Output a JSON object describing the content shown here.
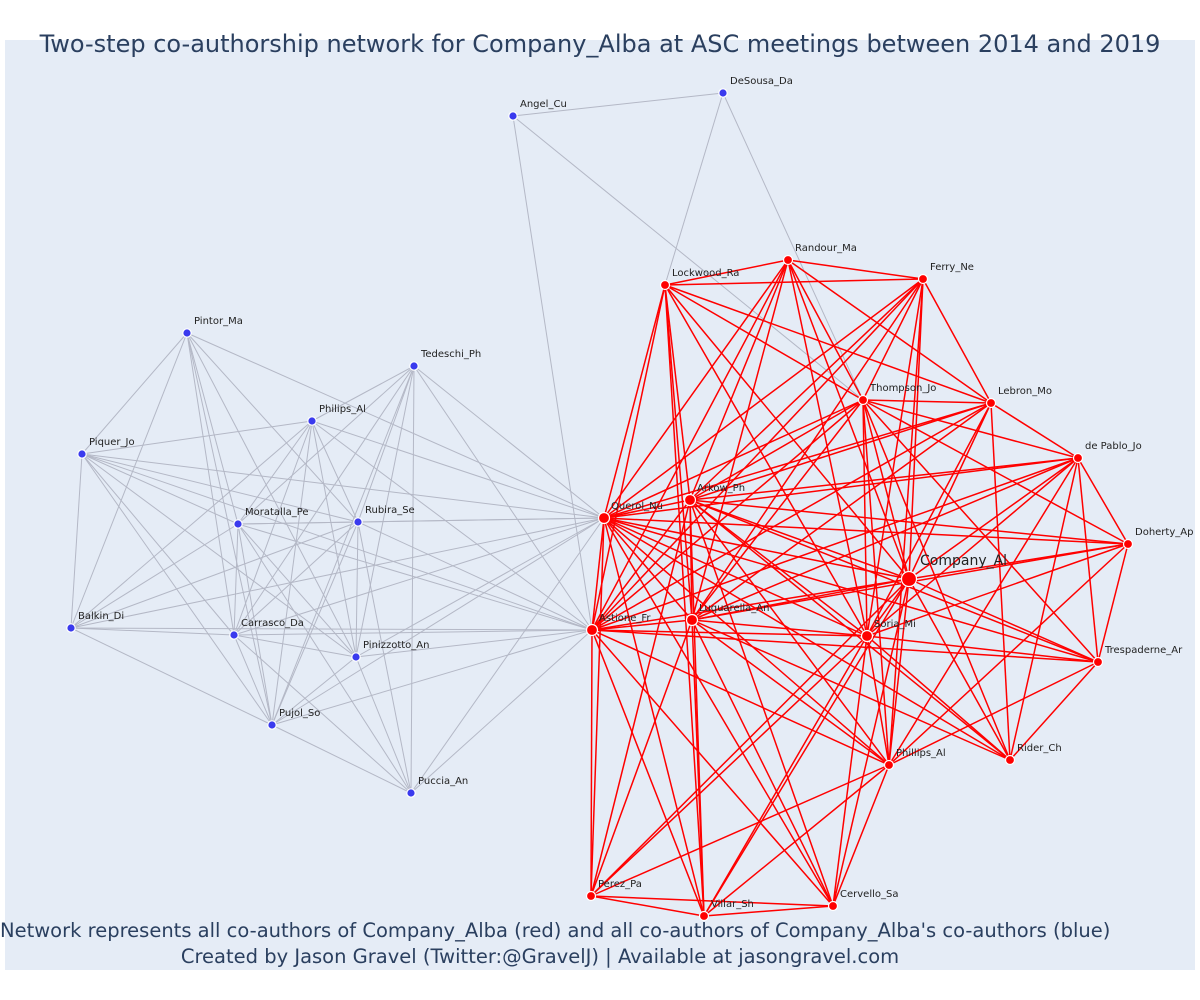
{
  "title": "Two-step co-authorship network for Company_Alba at ASC meetings between 2014 and 2019",
  "caption": {
    "line1": "Network represents all co-authors of Company_Alba (red) and all co-authors of Company_Alba's co-authors (blue)",
    "line2": "Created by Jason Gravel (Twitter:@GravelJ) | Available at jasongravel.com"
  },
  "colors": {
    "red": "#ff0000",
    "blue": "#3a3aee",
    "edge_gray": "#b4b8c6",
    "background": "#e5ecf6",
    "text": "#2a3f5f"
  },
  "nodes": [
    {
      "id": "company",
      "label": "Company_Al",
      "group": "center"
    },
    {
      "id": "querol",
      "label": "Querol_Nu",
      "group": "red"
    },
    {
      "id": "arkow",
      "label": "Arkow_Ph",
      "group": "red"
    },
    {
      "id": "astione",
      "label": "Astione_Fr",
      "group": "red"
    },
    {
      "id": "luquarella",
      "label": "Luquarella_An",
      "group": "red"
    },
    {
      "id": "soria",
      "label": "Soria_Mi",
      "group": "red"
    },
    {
      "id": "thompson",
      "label": "Thompson_Jo",
      "group": "red"
    },
    {
      "id": "lockwood",
      "label": "Lockwood_Ra",
      "group": "red"
    },
    {
      "id": "randour",
      "label": "Randour_Ma",
      "group": "red"
    },
    {
      "id": "ferry",
      "label": "Ferry_Ne",
      "group": "red"
    },
    {
      "id": "lebron",
      "label": "Lebron_Mo",
      "group": "red"
    },
    {
      "id": "depablo",
      "label": "de Pablo_Jo",
      "group": "red"
    },
    {
      "id": "doherty",
      "label": "Doherty_Ap",
      "group": "red"
    },
    {
      "id": "trespaderne",
      "label": "Trespaderne_Ar",
      "group": "red"
    },
    {
      "id": "rider",
      "label": "Rider_Ch",
      "group": "red"
    },
    {
      "id": "phillipsr",
      "label": "Phillips_Al",
      "group": "red"
    },
    {
      "id": "cervello",
      "label": "Cervello_Sa",
      "group": "red"
    },
    {
      "id": "villar",
      "label": "Villar_Sh",
      "group": "red"
    },
    {
      "id": "perez",
      "label": "Perez_Pa",
      "group": "red"
    },
    {
      "id": "angel",
      "label": "Angel_Cu",
      "group": "blue"
    },
    {
      "id": "desousa",
      "label": "DeSousa_Da",
      "group": "blue"
    },
    {
      "id": "pintor",
      "label": "Pintor_Ma",
      "group": "blue"
    },
    {
      "id": "tedeschi",
      "label": "Tedeschi_Ph",
      "group": "blue"
    },
    {
      "id": "philipsb",
      "label": "Philips_Al",
      "group": "blue"
    },
    {
      "id": "piquer",
      "label": "Piquer_Jo",
      "group": "blue"
    },
    {
      "id": "moratalla",
      "label": "Moratalla_Pe",
      "group": "blue"
    },
    {
      "id": "rubira",
      "label": "Rubira_Se",
      "group": "blue"
    },
    {
      "id": "balkin",
      "label": "Balkin_Di",
      "group": "blue"
    },
    {
      "id": "carrasco",
      "label": "Carrasco_Da",
      "group": "blue"
    },
    {
      "id": "pinizzotto",
      "label": "Pinizzotto_An",
      "group": "blue"
    },
    {
      "id": "pujol",
      "label": "Pujol_So",
      "group": "blue"
    },
    {
      "id": "puccia",
      "label": "Puccia_An",
      "group": "blue"
    }
  ],
  "red_edges": [
    [
      "company",
      "querol"
    ],
    [
      "company",
      "arkow"
    ],
    [
      "company",
      "astione"
    ],
    [
      "company",
      "luquarella"
    ],
    [
      "company",
      "soria"
    ],
    [
      "company",
      "thompson"
    ],
    [
      "company",
      "lockwood"
    ],
    [
      "company",
      "randour"
    ],
    [
      "company",
      "ferry"
    ],
    [
      "company",
      "lebron"
    ],
    [
      "company",
      "depablo"
    ],
    [
      "company",
      "doherty"
    ],
    [
      "company",
      "trespaderne"
    ],
    [
      "company",
      "rider"
    ],
    [
      "company",
      "phillipsr"
    ],
    [
      "company",
      "cervello"
    ],
    [
      "company",
      "villar"
    ],
    [
      "company",
      "perez"
    ],
    [
      "querol",
      "arkow"
    ],
    [
      "querol",
      "astione"
    ],
    [
      "querol",
      "luquarella"
    ],
    [
      "querol",
      "soria"
    ],
    [
      "querol",
      "thompson"
    ],
    [
      "querol",
      "lockwood"
    ],
    [
      "querol",
      "randour"
    ],
    [
      "querol",
      "ferry"
    ],
    [
      "querol",
      "lebron"
    ],
    [
      "querol",
      "depablo"
    ],
    [
      "querol",
      "doherty"
    ],
    [
      "querol",
      "trespaderne"
    ],
    [
      "querol",
      "rider"
    ],
    [
      "querol",
      "phillipsr"
    ],
    [
      "querol",
      "cervello"
    ],
    [
      "querol",
      "villar"
    ],
    [
      "querol",
      "perez"
    ],
    [
      "arkow",
      "astione"
    ],
    [
      "arkow",
      "luquarella"
    ],
    [
      "arkow",
      "soria"
    ],
    [
      "arkow",
      "thompson"
    ],
    [
      "arkow",
      "lockwood"
    ],
    [
      "arkow",
      "randour"
    ],
    [
      "arkow",
      "ferry"
    ],
    [
      "arkow",
      "lebron"
    ],
    [
      "arkow",
      "depablo"
    ],
    [
      "arkow",
      "doherty"
    ],
    [
      "arkow",
      "trespaderne"
    ],
    [
      "arkow",
      "rider"
    ],
    [
      "arkow",
      "phillipsr"
    ],
    [
      "arkow",
      "cervello"
    ],
    [
      "arkow",
      "villar"
    ],
    [
      "arkow",
      "perez"
    ],
    [
      "astione",
      "luquarella"
    ],
    [
      "astione",
      "soria"
    ],
    [
      "astione",
      "thompson"
    ],
    [
      "astione",
      "lockwood"
    ],
    [
      "astione",
      "randour"
    ],
    [
      "astione",
      "ferry"
    ],
    [
      "astione",
      "lebron"
    ],
    [
      "astione",
      "depablo"
    ],
    [
      "astione",
      "trespaderne"
    ],
    [
      "astione",
      "phillipsr"
    ],
    [
      "astione",
      "cervello"
    ],
    [
      "astione",
      "villar"
    ],
    [
      "astione",
      "perez"
    ],
    [
      "luquarella",
      "soria"
    ],
    [
      "luquarella",
      "thompson"
    ],
    [
      "luquarella",
      "lockwood"
    ],
    [
      "luquarella",
      "randour"
    ],
    [
      "luquarella",
      "ferry"
    ],
    [
      "luquarella",
      "lebron"
    ],
    [
      "luquarella",
      "depablo"
    ],
    [
      "luquarella",
      "doherty"
    ],
    [
      "luquarella",
      "rider"
    ],
    [
      "luquarella",
      "phillipsr"
    ],
    [
      "luquarella",
      "cervello"
    ],
    [
      "luquarella",
      "villar"
    ],
    [
      "luquarella",
      "perez"
    ],
    [
      "soria",
      "thompson"
    ],
    [
      "soria",
      "lockwood"
    ],
    [
      "soria",
      "randour"
    ],
    [
      "soria",
      "ferry"
    ],
    [
      "soria",
      "lebron"
    ],
    [
      "soria",
      "depablo"
    ],
    [
      "soria",
      "doherty"
    ],
    [
      "soria",
      "trespaderne"
    ],
    [
      "soria",
      "rider"
    ],
    [
      "soria",
      "phillipsr"
    ],
    [
      "soria",
      "cervello"
    ],
    [
      "soria",
      "villar"
    ],
    [
      "soria",
      "perez"
    ],
    [
      "thompson",
      "lockwood"
    ],
    [
      "thompson",
      "randour"
    ],
    [
      "thompson",
      "ferry"
    ],
    [
      "thompson",
      "lebron"
    ],
    [
      "thompson",
      "depablo"
    ],
    [
      "thompson",
      "doherty"
    ],
    [
      "thompson",
      "trespaderne"
    ],
    [
      "thompson",
      "rider"
    ],
    [
      "thompson",
      "phillipsr"
    ],
    [
      "lockwood",
      "randour"
    ],
    [
      "lockwood",
      "ferry"
    ],
    [
      "lockwood",
      "lebron"
    ],
    [
      "lockwood",
      "villar"
    ],
    [
      "randour",
      "ferry"
    ],
    [
      "randour",
      "lebron"
    ],
    [
      "ferry",
      "lebron"
    ],
    [
      "ferry",
      "phillipsr"
    ],
    [
      "lebron",
      "depablo"
    ],
    [
      "lebron",
      "rider"
    ],
    [
      "depablo",
      "doherty"
    ],
    [
      "depablo",
      "trespaderne"
    ],
    [
      "depablo",
      "rider"
    ],
    [
      "depablo",
      "phillipsr"
    ],
    [
      "doherty",
      "trespaderne"
    ],
    [
      "doherty",
      "phillipsr"
    ],
    [
      "trespaderne",
      "rider"
    ],
    [
      "trespaderne",
      "phillipsr"
    ],
    [
      "phillipsr",
      "perez"
    ],
    [
      "phillipsr",
      "villar"
    ],
    [
      "phillipsr",
      "cervello"
    ],
    [
      "perez",
      "villar"
    ],
    [
      "perez",
      "cervello"
    ],
    [
      "villar",
      "cervello"
    ]
  ],
  "gray_edges": [
    [
      "angel",
      "desousa"
    ],
    [
      "angel",
      "astione"
    ],
    [
      "desousa",
      "lockwood"
    ],
    [
      "desousa",
      "thompson"
    ],
    [
      "angel",
      "thompson"
    ],
    [
      "pintor",
      "piquer"
    ],
    [
      "pintor",
      "moratalla"
    ],
    [
      "pintor",
      "rubira"
    ],
    [
      "pintor",
      "carrasco"
    ],
    [
      "pintor",
      "pinizzotto"
    ],
    [
      "pintor",
      "pujol"
    ],
    [
      "pintor",
      "balkin"
    ],
    [
      "pintor",
      "querol"
    ],
    [
      "tedeschi",
      "philipsb"
    ],
    [
      "tedeschi",
      "moratalla"
    ],
    [
      "tedeschi",
      "rubira"
    ],
    [
      "tedeschi",
      "carrasco"
    ],
    [
      "tedeschi",
      "pinizzotto"
    ],
    [
      "tedeschi",
      "pujol"
    ],
    [
      "tedeschi",
      "puccia"
    ],
    [
      "tedeschi",
      "querol"
    ],
    [
      "tedeschi",
      "astione"
    ],
    [
      "philipsb",
      "piquer"
    ],
    [
      "philipsb",
      "moratalla"
    ],
    [
      "philipsb",
      "rubira"
    ],
    [
      "philipsb",
      "carrasco"
    ],
    [
      "philipsb",
      "pinizzotto"
    ],
    [
      "philipsb",
      "pujol"
    ],
    [
      "philipsb",
      "balkin"
    ],
    [
      "philipsb",
      "querol"
    ],
    [
      "philipsb",
      "astione"
    ],
    [
      "piquer",
      "moratalla"
    ],
    [
      "piquer",
      "rubira"
    ],
    [
      "piquer",
      "carrasco"
    ],
    [
      "piquer",
      "pinizzotto"
    ],
    [
      "piquer",
      "pujol"
    ],
    [
      "piquer",
      "balkin"
    ],
    [
      "piquer",
      "querol"
    ],
    [
      "piquer",
      "astione"
    ],
    [
      "moratalla",
      "rubira"
    ],
    [
      "moratalla",
      "carrasco"
    ],
    [
      "moratalla",
      "pinizzotto"
    ],
    [
      "moratalla",
      "pujol"
    ],
    [
      "moratalla",
      "balkin"
    ],
    [
      "moratalla",
      "querol"
    ],
    [
      "moratalla",
      "astione"
    ],
    [
      "moratalla",
      "puccia"
    ],
    [
      "rubira",
      "carrasco"
    ],
    [
      "rubira",
      "pinizzotto"
    ],
    [
      "rubira",
      "pujol"
    ],
    [
      "rubira",
      "balkin"
    ],
    [
      "rubira",
      "querol"
    ],
    [
      "rubira",
      "astione"
    ],
    [
      "rubira",
      "puccia"
    ],
    [
      "balkin",
      "carrasco"
    ],
    [
      "balkin",
      "pujol"
    ],
    [
      "balkin",
      "querol"
    ],
    [
      "balkin",
      "astione"
    ],
    [
      "carrasco",
      "pinizzotto"
    ],
    [
      "carrasco",
      "pujol"
    ],
    [
      "carrasco",
      "querol"
    ],
    [
      "carrasco",
      "astione"
    ],
    [
      "carrasco",
      "puccia"
    ],
    [
      "pinizzotto",
      "pujol"
    ],
    [
      "pinizzotto",
      "puccia"
    ],
    [
      "pinizzotto",
      "querol"
    ],
    [
      "pinizzotto",
      "astione"
    ],
    [
      "pujol",
      "puccia"
    ],
    [
      "pujol",
      "querol"
    ],
    [
      "pujol",
      "astione"
    ],
    [
      "puccia",
      "querol"
    ],
    [
      "puccia",
      "astione"
    ]
  ]
}
